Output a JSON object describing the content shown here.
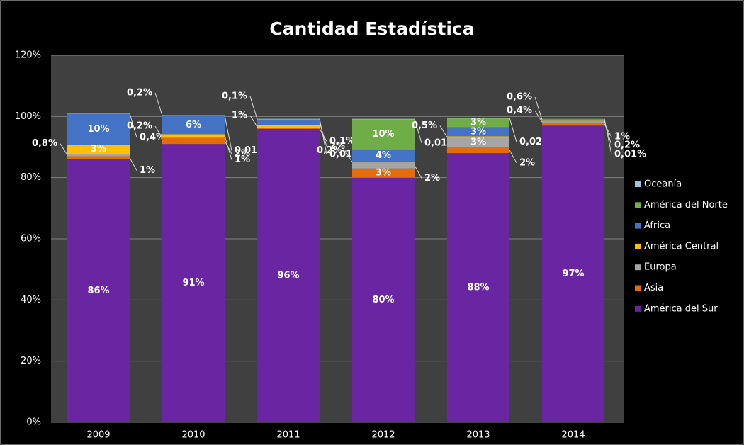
{
  "chart_data": {
    "type": "stacked_bar",
    "title": "Cantidad Estadística",
    "categories": [
      "2009",
      "2010",
      "2011",
      "2012",
      "2013",
      "2014"
    ],
    "ylim": [
      0,
      120
    ],
    "yticks": [
      {
        "value": 0,
        "label": "0%"
      },
      {
        "value": 20,
        "label": "20%"
      },
      {
        "value": 40,
        "label": "40%"
      },
      {
        "value": 60,
        "label": "60%"
      },
      {
        "value": 80,
        "label": "80%"
      },
      {
        "value": 100,
        "label": "100%"
      },
      {
        "value": 120,
        "label": "120%"
      }
    ],
    "grid": true,
    "legend": "right",
    "series": [
      {
        "name": "América del Sur",
        "color": "#6a25a3",
        "values": [
          86,
          91,
          96,
          80,
          88,
          97
        ],
        "value_labels": [
          "86%",
          "91%",
          "96%",
          "80%",
          "88%",
          "97%"
        ]
      },
      {
        "name": "Asia",
        "color": "#e46c0a",
        "values": [
          1,
          2,
          0.1,
          3,
          2,
          1
        ],
        "value_labels": [
          "1%",
          "2%",
          "0,1%",
          "3%",
          "2%",
          "1%"
        ]
      },
      {
        "name": "Europa",
        "color": "#a5a5a5",
        "values": [
          0.8,
          0.2,
          null,
          2,
          3,
          0.4
        ],
        "value_labels": [
          "0,8%",
          "0,2%",
          null,
          "2%",
          "3%",
          "0,4%"
        ]
      },
      {
        "name": "América Central",
        "color": "#ffc000",
        "values": [
          3,
          1,
          1,
          0.2,
          0.5,
          0.2
        ],
        "value_labels": [
          "3%",
          "1%",
          "1%",
          "0,2%",
          "0,5%",
          "0,2%"
        ]
      },
      {
        "name": "África",
        "color": "#4472c4",
        "values": [
          10,
          6,
          2,
          4,
          3,
          0.6
        ],
        "value_labels": [
          "10%",
          "6%",
          "2%",
          "4%",
          "3%",
          "0,6%"
        ]
      },
      {
        "name": "América del Norte",
        "color": "#70ad47",
        "values": [
          0.4,
          0.2,
          0.1,
          10,
          3,
          0.01
        ],
        "value_labels": [
          "0,4%",
          "0,2%",
          "0,1%",
          "10%",
          "3%",
          "0,01%"
        ]
      },
      {
        "name": "Oceanía",
        "color": "#9dc3e6",
        "values": [
          null,
          0.01,
          0.01,
          0.01,
          0.02,
          null
        ],
        "value_labels": [
          null,
          "0,01%",
          "0,01%",
          "0,01%",
          "0,02%",
          null
        ]
      }
    ]
  }
}
